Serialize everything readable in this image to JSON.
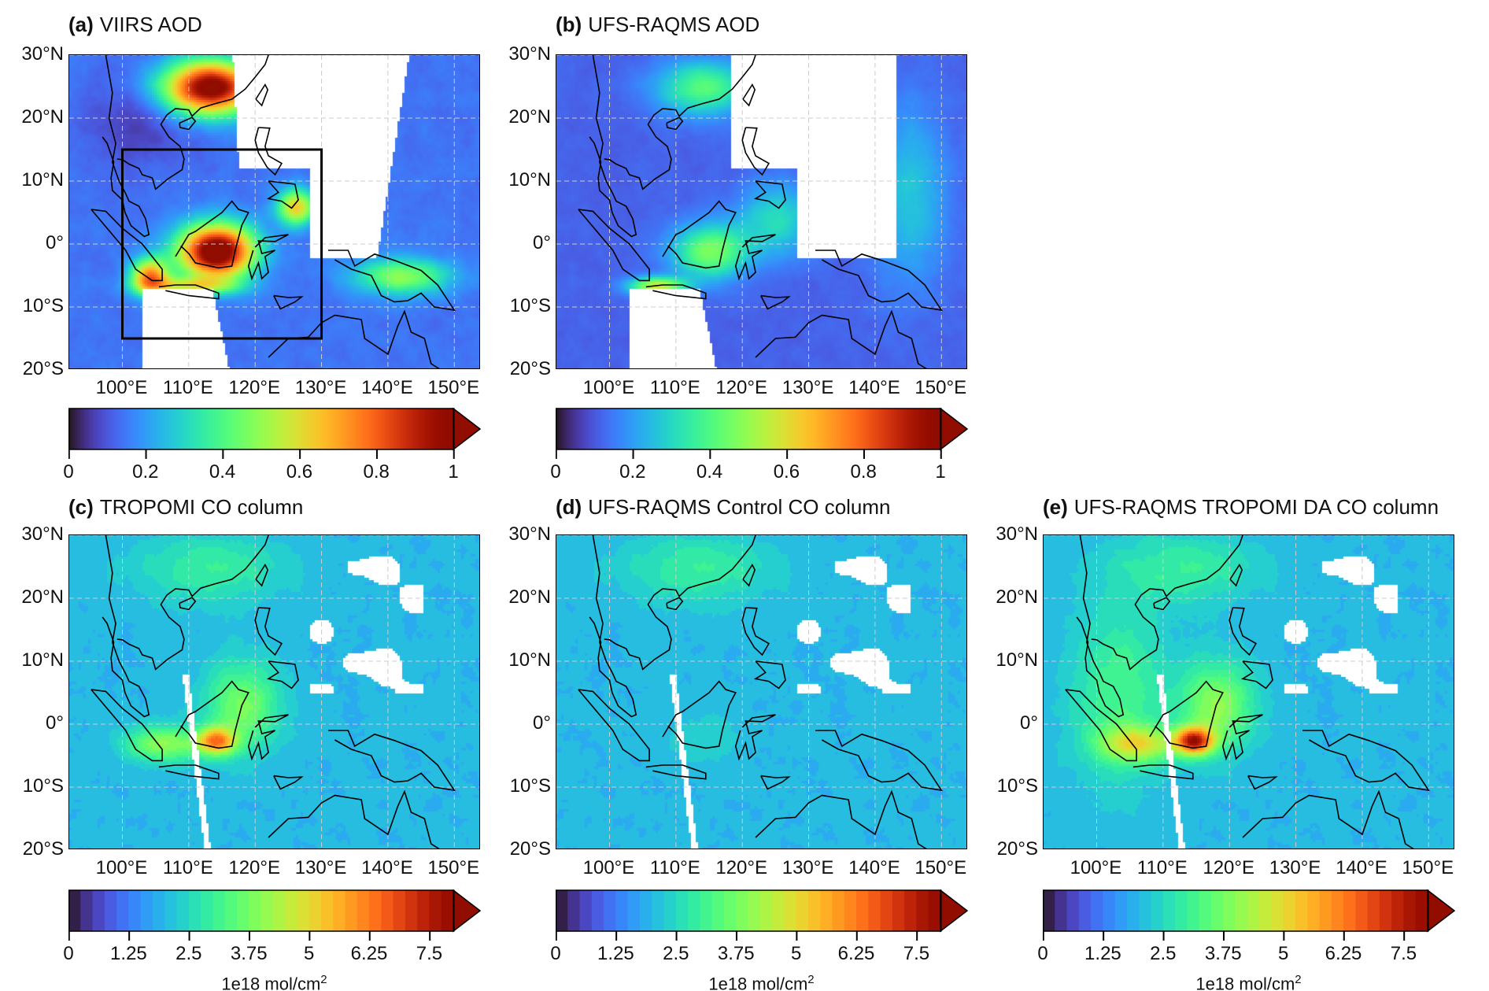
{
  "panels": [
    {
      "id": "a",
      "letter": "(a)",
      "title": "VIIRS AOD",
      "kind": "aod",
      "product": "viirs",
      "box": {
        "lon": [
          100,
          130
        ],
        "lat": [
          -15,
          15
        ]
      }
    },
    {
      "id": "b",
      "letter": "(b)",
      "title": "UFS-RAQMS AOD",
      "kind": "aod",
      "product": "model_aod"
    },
    {
      "id": "c",
      "letter": "(c)",
      "title": "TROPOMI CO column",
      "kind": "co",
      "product": "tropomi"
    },
    {
      "id": "d",
      "letter": "(d)",
      "title": "UFS-RAQMS Control CO column",
      "kind": "co",
      "product": "control"
    },
    {
      "id": "e",
      "letter": "(e)",
      "title": "UFS-RAQMS TROPOMI DA CO column",
      "kind": "co",
      "product": "da"
    }
  ],
  "chart_data": {
    "type": "heatmap",
    "map_extent": {
      "lon": [
        92,
        154
      ],
      "lat": [
        -20,
        30
      ]
    },
    "lat_ticks": [
      {
        "v": 30,
        "label": "30°N"
      },
      {
        "v": 20,
        "label": "20°N"
      },
      {
        "v": 10,
        "label": "10°N"
      },
      {
        "v": 0,
        "label": "0°"
      },
      {
        "v": -10,
        "label": "10°S"
      },
      {
        "v": -20,
        "label": "20°S"
      }
    ],
    "lon_ticks": [
      {
        "v": 100,
        "label": "100°E"
      },
      {
        "v": 110,
        "label": "110°E"
      },
      {
        "v": 120,
        "label": "120°E"
      },
      {
        "v": 130,
        "label": "130°E"
      },
      {
        "v": 140,
        "label": "140°E"
      },
      {
        "v": 150,
        "label": "150°E"
      }
    ],
    "aod_colorbar": {
      "range": [
        0,
        1
      ],
      "continuous": true,
      "extend": "max",
      "ticks": [
        {
          "v": 0,
          "label": "0"
        },
        {
          "v": 0.2,
          "label": "0.2"
        },
        {
          "v": 0.4,
          "label": "0.4"
        },
        {
          "v": 0.6,
          "label": "0.6"
        },
        {
          "v": 0.8,
          "label": "0.8"
        },
        {
          "v": 1,
          "label": "1"
        }
      ]
    },
    "co_colorbar": {
      "range": [
        0,
        8
      ],
      "step": 0.25,
      "extend": "max",
      "units": "1e18 mol/cm",
      "units_sup": "2",
      "ticks": [
        {
          "v": 0,
          "label": "0"
        },
        {
          "v": 1.25,
          "label": "1.25"
        },
        {
          "v": 2.5,
          "label": "2.5"
        },
        {
          "v": 3.75,
          "label": "3.75"
        },
        {
          "v": 5,
          "label": "5"
        },
        {
          "v": 6.25,
          "label": "6.25"
        },
        {
          "v": 7.5,
          "label": "7.5"
        }
      ]
    }
  }
}
